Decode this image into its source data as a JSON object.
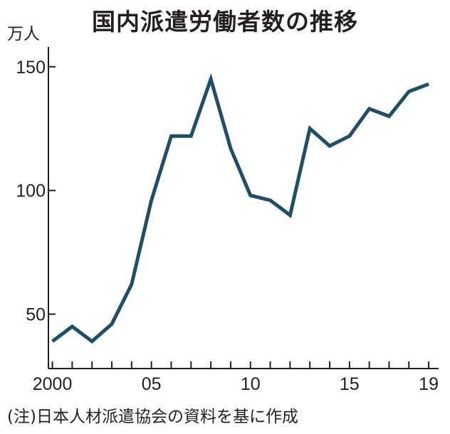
{
  "chart_data": {
    "type": "line",
    "title": "国内派遣労働者数の推移",
    "y_unit": "万人",
    "source_note": "(注)日本人材派遣協会の資料を基に作成",
    "x": [
      2000,
      2001,
      2002,
      2003,
      2004,
      2005,
      2006,
      2007,
      2008,
      2009,
      2010,
      2011,
      2012,
      2013,
      2014,
      2015,
      2016,
      2017,
      2018,
      2019
    ],
    "x_tick_values": [
      2000,
      2005,
      2010,
      2015,
      2019
    ],
    "x_tick_labels": [
      "2000",
      "05",
      "10",
      "15",
      "19"
    ],
    "xlim": [
      1999.8,
      2019.5
    ],
    "y_tick_values": [
      50,
      100,
      150
    ],
    "y_tick_labels": [
      "50",
      "100",
      "150"
    ],
    "ylim": [
      28,
      158
    ],
    "series": [
      {
        "color": "#1d4f66",
        "values": [
          39,
          45,
          39,
          46,
          62,
          96,
          122,
          122,
          145,
          117,
          98,
          96,
          90,
          125,
          118,
          122,
          133,
          130,
          140,
          143
        ]
      }
    ],
    "grid": false,
    "legend": "none",
    "axis_color": "#231f20"
  }
}
